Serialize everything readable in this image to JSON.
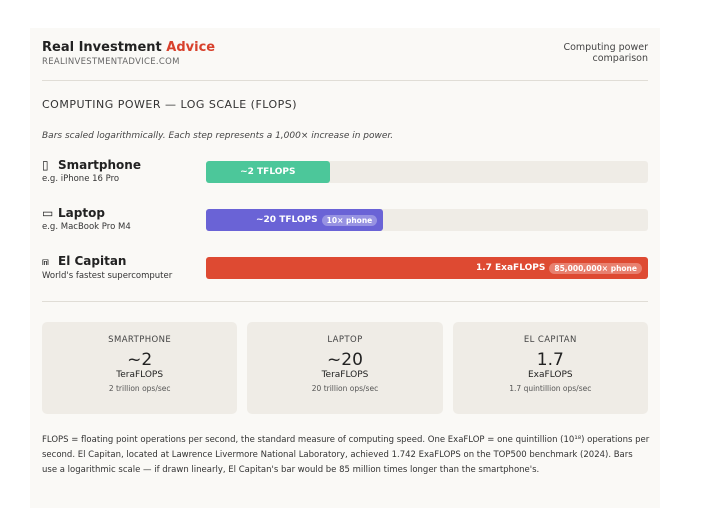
{
  "header": {
    "brand": "Real Investment",
    "brand_accent": "Advice",
    "site": "REALINVESTMENTADVICE.COM",
    "caption": "Computing power comparison"
  },
  "chart_data": {
    "type": "bar",
    "orientation": "horizontal",
    "title": "COMPUTING POWER — LOG SCALE (FLOPS)",
    "subtitle": "Bars scaled logarithmically. Each step represents a 1,000× increase in power.",
    "categories": [
      "Smartphone",
      "Laptop",
      "El Capitan"
    ],
    "category_notes": [
      "e.g. iPhone 16 Pro",
      "e.g. MacBook Pro M4",
      "World's fastest supercomputer"
    ],
    "values": [
      2000000000000,
      20000000000000,
      1700000000000000000
    ],
    "value_labels": [
      "~2 TFLOPS",
      "~20 TFLOPS",
      "1.7 ExaFLOPS"
    ],
    "badges": [
      null,
      "10× phone",
      "85,000,000× phone"
    ],
    "colors": [
      "#4cc79a",
      "#6a63d6",
      "#de4a32"
    ],
    "xlim": [
      10000000000,
      1700000000000000000
    ],
    "log_scale": true
  },
  "cards": [
    {
      "label": "SMARTPHONE",
      "value": "~2",
      "unit": "TeraFLOPS",
      "note": "2 trillion ops/sec"
    },
    {
      "label": "LAPTOP",
      "value": "~20",
      "unit": "TeraFLOPS",
      "note": "20 trillion ops/sec"
    },
    {
      "label": "EL CAPITAN",
      "value": "1.7",
      "unit": "ExaFLOPS",
      "note": "1.7 quintillion ops/sec"
    }
  ],
  "footnote": "FLOPS = floating point operations per second, the standard measure of computing speed. One ExaFLOP = one quintillion (10¹⁸) operations per second. El Capitan, located at Lawrence Livermore National Laboratory, achieved 1.742 ExaFLOPS on the TOP500 benchmark (2024). Bars use a logarithmic scale — if drawn linearly, El Capitan's bar would be 85 million times longer than the smartphone's."
}
